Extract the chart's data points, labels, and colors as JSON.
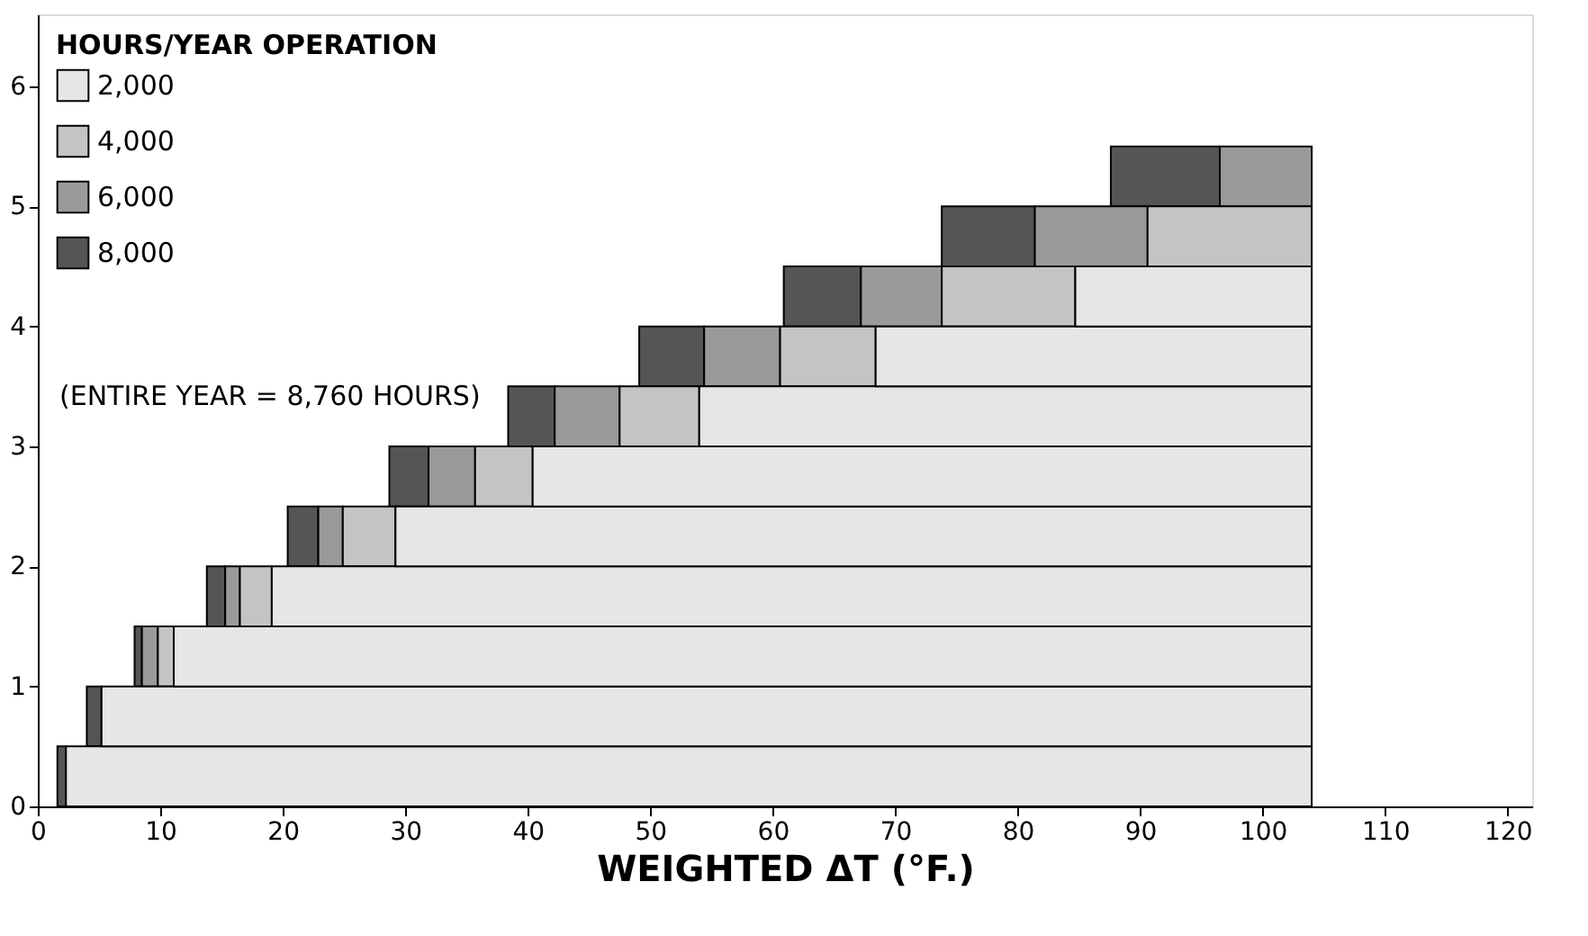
{
  "chart_data": {
    "type": "bar",
    "orientation": "horizontal",
    "xlabel": "WEIGHTED ΔT (°F.)",
    "legend_title": "HOURS/YEAR OPERATION",
    "legend": "top left",
    "x": [
      0.25,
      0.75,
      1.25,
      1.75,
      2.25,
      2.75,
      3.25,
      3.75,
      4.25,
      4.75,
      5.25
    ],
    "series": [
      {
        "name": "8,000",
        "color": "#555555",
        "base": [
          1.6,
          4.0,
          7.9,
          13.8,
          20.4,
          28.7,
          38.4,
          49.1,
          60.9,
          73.8,
          87.6
        ],
        "values": [
          0.7,
          1.2,
          0.6,
          1.5,
          2.5,
          3.2,
          3.8,
          5.3,
          6.3,
          7.6,
          8.9
        ]
      },
      {
        "name": "6,000",
        "color": "#9a9a9a",
        "base": [
          null,
          null,
          8.5,
          15.3,
          22.9,
          31.9,
          42.2,
          54.4,
          67.2,
          81.4,
          96.5
        ],
        "values": [
          null,
          null,
          1.3,
          1.2,
          2.0,
          3.8,
          5.3,
          6.2,
          6.6,
          9.2,
          7.5
        ]
      },
      {
        "name": "4,000",
        "color": "#c4c4c4",
        "base": [
          null,
          null,
          9.8,
          16.5,
          24.9,
          35.7,
          47.5,
          60.6,
          73.8,
          90.6,
          null
        ],
        "values": [
          null,
          null,
          1.3,
          2.6,
          4.3,
          4.7,
          6.5,
          7.8,
          10.9,
          13.4,
          null
        ]
      },
      {
        "name": "2,000",
        "color": "#e6e6e6",
        "base": [
          2.3,
          5.2,
          11.1,
          19.1,
          29.2,
          40.4,
          54.0,
          68.4,
          84.7,
          null,
          null
        ],
        "values": [
          101.7,
          98.8,
          92.9,
          84.9,
          74.8,
          63.6,
          50.0,
          35.6,
          19.3,
          null,
          null
        ]
      }
    ],
    "xlim": [
      0,
      122
    ],
    "xticks": [
      0,
      10,
      20,
      30,
      40,
      50,
      60,
      70,
      80,
      90,
      100,
      110,
      120
    ],
    "ylim": [
      0,
      6.6
    ],
    "yticks": [
      0,
      1,
      2,
      3,
      4,
      5,
      6
    ],
    "grid": false,
    "annotations": [
      "(ENTIRE YEAR = 8,760 HOURS)"
    ]
  }
}
